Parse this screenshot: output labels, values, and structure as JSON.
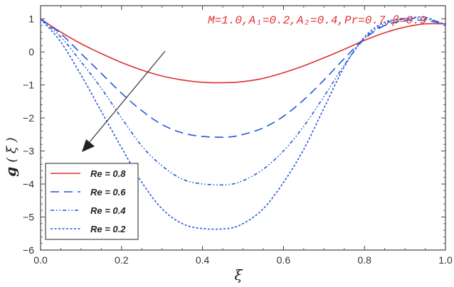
{
  "chart_data": {
    "type": "line",
    "ylabel_main": "g",
    "ylabel_arg": "( ξ )",
    "xlabel": "ξ",
    "annotation": "M=1.0,A₁=0.2,A₂=0.4,Pr=0.7,β=0.9",
    "xlim": [
      0,
      1
    ],
    "ylim": [
      -6,
      1.4
    ],
    "x_ticks": [
      "0.0",
      "0.2",
      "0.4",
      "0.6",
      "0.8",
      "1.0"
    ],
    "y_ticks": [
      "1",
      "0",
      "−1",
      "−2",
      "−3",
      "−4",
      "−5",
      "−6"
    ],
    "x": [
      0,
      0.05,
      0.1,
      0.15,
      0.2,
      0.25,
      0.3,
      0.35,
      0.4,
      0.46,
      0.5,
      0.55,
      0.6,
      0.65,
      0.7,
      0.75,
      0.8,
      0.85,
      0.9,
      0.95,
      1.0
    ],
    "series": [
      {
        "name": "Re = 0.8",
        "color": "#e03030",
        "dash": "solid",
        "values": [
          1.0,
          0.6,
          0.25,
          -0.05,
          -0.32,
          -0.55,
          -0.73,
          -0.85,
          -0.92,
          -0.93,
          -0.9,
          -0.8,
          -0.63,
          -0.42,
          -0.18,
          0.08,
          0.35,
          0.58,
          0.75,
          0.85,
          0.85
        ]
      },
      {
        "name": "Re = 0.6",
        "color": "#2255dd",
        "dash": "long",
        "values": [
          1.0,
          0.55,
          -0.05,
          -0.65,
          -1.25,
          -1.78,
          -2.2,
          -2.45,
          -2.56,
          -2.58,
          -2.5,
          -2.3,
          -1.95,
          -1.45,
          -0.85,
          -0.2,
          0.4,
          0.8,
          0.95,
          0.95,
          0.85
        ]
      },
      {
        "name": "Re = 0.4",
        "color": "#2255dd",
        "dash": "dashdotdot",
        "values": [
          1.0,
          0.45,
          -0.3,
          -1.1,
          -2.0,
          -2.85,
          -3.45,
          -3.85,
          -4.0,
          -4.02,
          -3.9,
          -3.55,
          -3.0,
          -2.25,
          -1.35,
          -0.4,
          0.4,
          0.85,
          1.0,
          1.0,
          0.85
        ]
      },
      {
        "name": "Re = 0.2",
        "color": "#2255dd",
        "dash": "dot",
        "values": [
          1.0,
          0.3,
          -0.7,
          -1.8,
          -2.9,
          -3.95,
          -4.75,
          -5.2,
          -5.35,
          -5.35,
          -5.2,
          -4.75,
          -3.95,
          -2.95,
          -1.7,
          -0.45,
          0.45,
          0.9,
          1.0,
          1.05,
          0.8
        ]
      }
    ],
    "legend": {
      "position": "bottom-left"
    }
  }
}
